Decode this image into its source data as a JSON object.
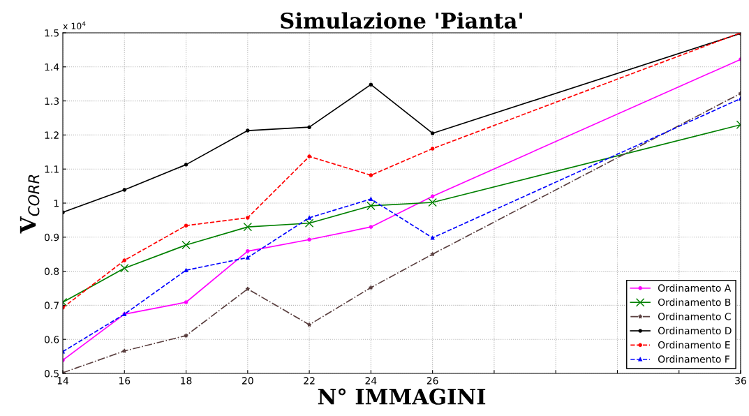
{
  "chart_data": {
    "type": "line",
    "title": "Simulazione 'Pianta'",
    "xlabel": "N° IMMAGINI",
    "ylabel": "V$_{CORR}$",
    "x": [
      14,
      16,
      18,
      20,
      22,
      24,
      26,
      36
    ],
    "series": [
      {
        "name": "Ordinamento A",
        "color": "#ff00ff",
        "marker": "circle",
        "line_style": "solid",
        "values": [
          0.539,
          0.674,
          0.709,
          0.859,
          0.893,
          0.93,
          1.02,
          1.422
        ]
      },
      {
        "name": "Ordinamento B",
        "color": "#008000",
        "marker": "cross",
        "line_style": "solid",
        "values": [
          0.709,
          0.809,
          0.877,
          0.93,
          0.941,
          0.992,
          1.002,
          1.23
        ]
      },
      {
        "name": "Ordinamento C",
        "color": "#5a3f3f",
        "marker": "star",
        "line_style": "dashdot",
        "values": [
          0.502,
          0.566,
          0.611,
          0.748,
          0.643,
          0.752,
          0.85,
          1.322
        ]
      },
      {
        "name": "Ordinamento D",
        "color": "#000000",
        "marker": "circle",
        "line_style": "solid",
        "values": [
          0.973,
          1.039,
          1.113,
          1.213,
          1.223,
          1.348,
          1.205,
          1.498
        ]
      },
      {
        "name": "Ordinamento E",
        "color": "#ff0000",
        "marker": "circle",
        "line_style": "dashed",
        "values": [
          0.693,
          0.832,
          0.934,
          0.957,
          1.137,
          1.082,
          1.16,
          1.5
        ]
      },
      {
        "name": "Ordinamento F",
        "color": "#0000ff",
        "marker": "triangle",
        "line_style": "dashed",
        "values": [
          0.564,
          0.674,
          0.803,
          0.84,
          0.957,
          1.012,
          0.898,
          1.307
        ]
      }
    ],
    "xlim": [
      14,
      36
    ],
    "xticks": [
      14,
      16,
      18,
      20,
      22,
      24,
      26,
      {
        "value": 28,
        "label": null
      },
      {
        "value": 30,
        "label": null
      },
      {
        "value": 32,
        "label": null
      },
      {
        "value": 34,
        "label": null
      },
      36
    ],
    "ylim": [
      0.5,
      1.5
    ],
    "yticks": [
      0.5,
      0.6,
      0.7,
      0.8,
      0.9,
      1,
      1.1,
      1.2,
      1.3,
      1.4,
      1.5
    ],
    "annotations": [
      "x 10$^{4}$"
    ],
    "grid": true,
    "legend": "bottom right"
  }
}
